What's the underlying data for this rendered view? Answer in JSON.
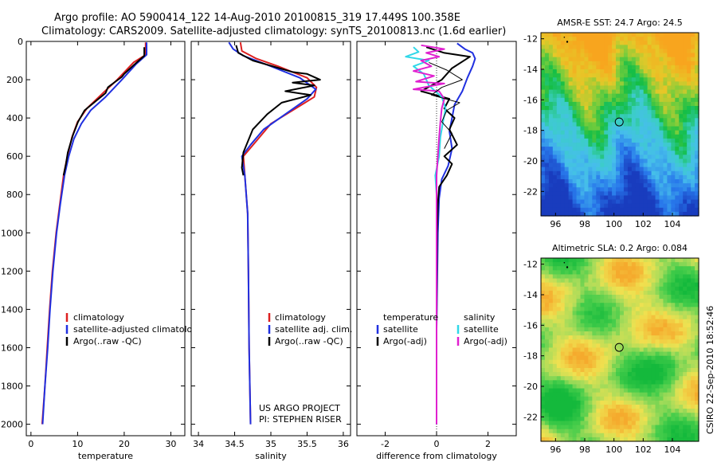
{
  "header": {
    "line1": "Argo profile: AO 5900414_122 14-Aug-2010 20100815_319 17.449S 100.358E",
    "line2": "Climatology: CARS2009. Satellite-adjusted climatology: synTS_20100813.nc (1.6d earlier)"
  },
  "side_label": "CSIRO 22-Sep-2010 18:52:46",
  "chart_data": [
    {
      "id": "temperature",
      "type": "line",
      "xlabel": "temperature",
      "xlim": [
        -1,
        33
      ],
      "ylim": [
        2060,
        0
      ],
      "xticks": [
        "0",
        "10",
        "20",
        "30"
      ],
      "xtick_values": [
        0,
        10,
        20,
        30
      ],
      "yticks": [
        "0",
        "200",
        "400",
        "600",
        "800",
        "1000",
        "1200",
        "1400",
        "1600",
        "1800",
        "2000"
      ],
      "ytick_values": [
        0,
        200,
        400,
        600,
        800,
        1000,
        1200,
        1400,
        1600,
        1800,
        2000
      ],
      "legend": [
        "climatology",
        "satellite-adjusted climatology",
        "Argo(..raw -QC)"
      ],
      "legend_colors": [
        "#dd2020",
        "#2030e0",
        "#000000"
      ],
      "series": [
        {
          "name": "climatology",
          "color": "#dd2020",
          "width": 2,
          "points": [
            [
              24.6,
              5
            ],
            [
              24.6,
              70
            ],
            [
              22,
              110
            ],
            [
              18.5,
              200
            ],
            [
              15,
              280
            ],
            [
              12,
              350
            ],
            [
              10,
              420
            ],
            [
              8.8,
              500
            ],
            [
              7.8,
              600
            ],
            [
              7,
              700
            ],
            [
              6.2,
              850
            ],
            [
              5.4,
              1000
            ],
            [
              4.6,
              1200
            ],
            [
              4,
              1400
            ],
            [
              3.5,
              1600
            ],
            [
              3.0,
              1800
            ],
            [
              2.4,
              2000
            ]
          ]
        },
        {
          "name": "satellite-adjusted climatology",
          "color": "#2030e0",
          "width": 2,
          "points": [
            [
              24.8,
              5
            ],
            [
              24.8,
              70
            ],
            [
              22.5,
              120
            ],
            [
              19.5,
              200
            ],
            [
              16,
              290
            ],
            [
              12.8,
              360
            ],
            [
              10.8,
              430
            ],
            [
              9.2,
              510
            ],
            [
              8.1,
              600
            ],
            [
              7.2,
              700
            ],
            [
              6.3,
              850
            ],
            [
              5.5,
              1000
            ],
            [
              4.7,
              1200
            ],
            [
              4.1,
              1400
            ],
            [
              3.6,
              1600
            ],
            [
              3.0,
              1800
            ],
            [
              2.5,
              2000
            ]
          ]
        },
        {
          "name": "Argo(..raw -QC)",
          "color": "#000000",
          "width": 2,
          "points": [
            [
              24.3,
              30
            ],
            [
              24.3,
              75
            ],
            [
              22,
              125
            ],
            [
              20,
              170
            ],
            [
              19.5,
              185
            ],
            [
              17,
              230
            ],
            [
              16.5,
              240
            ],
            [
              16,
              270
            ],
            [
              14.5,
              300
            ],
            [
              11.5,
              360
            ],
            [
              10.1,
              420
            ],
            [
              9,
              490
            ],
            [
              7.9,
              580
            ],
            [
              7.5,
              640
            ],
            [
              7.0,
              700
            ]
          ]
        }
      ]
    },
    {
      "id": "salinity",
      "type": "line",
      "xlabel": "salinity",
      "xlim": [
        33.9,
        36.1
      ],
      "ylim": [
        2060,
        0
      ],
      "xticks": [
        "34",
        "34.5",
        "35",
        "35.5",
        "36"
      ],
      "xtick_values": [
        34,
        34.5,
        35,
        35.5,
        36
      ],
      "legend": [
        "climatology",
        "satellite adj. clim.",
        "Argo(..raw -QC)"
      ],
      "legend_colors": [
        "#dd2020",
        "#2030e0",
        "#000000"
      ],
      "note": [
        "US ARGO PROJECT",
        "PI: STEPHEN RISER"
      ],
      "series": [
        {
          "name": "climatology",
          "color": "#dd2020",
          "width": 2,
          "points": [
            [
              34.58,
              5
            ],
            [
              34.6,
              50
            ],
            [
              34.8,
              90
            ],
            [
              35.1,
              130
            ],
            [
              35.5,
              190
            ],
            [
              35.63,
              240
            ],
            [
              35.6,
              290
            ],
            [
              35.3,
              360
            ],
            [
              35.0,
              430
            ],
            [
              34.8,
              520
            ],
            [
              34.62,
              600
            ],
            [
              34.64,
              700
            ],
            [
              34.68,
              900
            ],
            [
              34.69,
              1200
            ],
            [
              34.7,
              1600
            ],
            [
              34.72,
              2000
            ]
          ]
        },
        {
          "name": "satellite adj. clim.",
          "color": "#2030e0",
          "width": 2,
          "points": [
            [
              34.42,
              5
            ],
            [
              34.48,
              40
            ],
            [
              34.62,
              75
            ],
            [
              35.0,
              130
            ],
            [
              35.4,
              190
            ],
            [
              35.62,
              250
            ],
            [
              35.5,
              300
            ],
            [
              35.2,
              380
            ],
            [
              34.9,
              460
            ],
            [
              34.72,
              540
            ],
            [
              34.6,
              600
            ],
            [
              34.64,
              700
            ],
            [
              34.68,
              900
            ],
            [
              34.69,
              1200
            ],
            [
              34.7,
              1600
            ],
            [
              34.72,
              2000
            ]
          ]
        },
        {
          "name": "Argo(..raw -QC)",
          "color": "#000000",
          "width": 2,
          "points": [
            [
              34.52,
              20
            ],
            [
              34.55,
              60
            ],
            [
              34.75,
              100
            ],
            [
              35.3,
              160
            ],
            [
              35.5,
              170
            ],
            [
              35.68,
              200
            ],
            [
              35.3,
              215
            ],
            [
              35.6,
              230
            ],
            [
              35.2,
              260
            ],
            [
              35.55,
              280
            ],
            [
              35.15,
              320
            ],
            [
              34.95,
              380
            ],
            [
              34.75,
              460
            ],
            [
              34.62,
              580
            ],
            [
              34.6,
              660
            ],
            [
              34.62,
              700
            ]
          ]
        }
      ]
    },
    {
      "id": "difference",
      "type": "line",
      "xlabel": "difference from climatology",
      "xlim": [
        -3.1,
        3.1
      ],
      "ylim": [
        2060,
        0
      ],
      "xticks": [
        "-2",
        "0",
        "2"
      ],
      "xtick_values": [
        -2,
        0,
        2
      ],
      "legend_left": [
        "temperature",
        "satellite",
        "Argo(-adj)"
      ],
      "legend_left_colors": [
        null,
        "#2030e0",
        "#000000"
      ],
      "legend_right": [
        "salinity",
        "satellite",
        "Argo(-adj)"
      ],
      "legend_right_colors": [
        null,
        "#30d8e8",
        "#e020d0"
      ],
      "series": [
        {
          "name": "temperature satellite",
          "color": "#2030e0",
          "width": 2,
          "points": [
            [
              0.8,
              10
            ],
            [
              1.1,
              40
            ],
            [
              1.4,
              60
            ],
            [
              1.5,
              90
            ],
            [
              1.4,
              130
            ],
            [
              1.2,
              190
            ],
            [
              1.0,
              260
            ],
            [
              0.7,
              330
            ],
            [
              0.6,
              400
            ],
            [
              0.5,
              470
            ],
            [
              0.6,
              560
            ],
            [
              0.45,
              650
            ],
            [
              0.2,
              720
            ],
            [
              0.1,
              820
            ],
            [
              0.05,
              1000
            ],
            [
              0.0,
              1500
            ],
            [
              0.0,
              2000
            ]
          ]
        },
        {
          "name": "temperature Argo(-adj)",
          "color": "#000000",
          "width": 2,
          "points": [
            [
              -0.4,
              30
            ],
            [
              0.3,
              60
            ],
            [
              1.3,
              80
            ],
            [
              0.6,
              140
            ],
            [
              0.2,
              200
            ],
            [
              -0.6,
              260
            ],
            [
              0.5,
              300
            ],
            [
              0.3,
              350
            ],
            [
              0.7,
              400
            ],
            [
              0.5,
              460
            ],
            [
              0.8,
              540
            ],
            [
              0.3,
              600
            ],
            [
              0.6,
              640
            ],
            [
              0.4,
              700
            ],
            [
              0.1,
              760
            ],
            [
              0.05,
              850
            ],
            [
              0.02,
              1000
            ],
            [
              0.0,
              1500
            ],
            [
              0.0,
              2000
            ]
          ]
        },
        {
          "name": "salinity satellite",
          "color": "#30d8e8",
          "width": 2,
          "points": [
            [
              -0.9,
              30
            ],
            [
              -0.7,
              55
            ],
            [
              -1.2,
              80
            ],
            [
              -0.3,
              100
            ],
            [
              -0.9,
              130
            ],
            [
              -0.5,
              170
            ],
            [
              -0.3,
              230
            ],
            [
              0.2,
              290
            ],
            [
              0.35,
              350
            ],
            [
              0.25,
              420
            ],
            [
              0.15,
              500
            ],
            [
              0.1,
              600
            ],
            [
              -0.05,
              700
            ],
            [
              0.0,
              800
            ],
            [
              0.0,
              1200
            ],
            [
              0.0,
              2000
            ]
          ]
        },
        {
          "name": "salinity Argo(-adj)",
          "color": "#e020d0",
          "width": 2,
          "points": [
            [
              -0.6,
              20
            ],
            [
              0.3,
              40
            ],
            [
              -0.4,
              60
            ],
            [
              0.1,
              80
            ],
            [
              -0.6,
              100
            ],
            [
              -0.2,
              130
            ],
            [
              -0.9,
              155
            ],
            [
              -0.1,
              180
            ],
            [
              -0.8,
              210
            ],
            [
              0.3,
              220
            ],
            [
              -0.9,
              250
            ],
            [
              0.1,
              260
            ],
            [
              0.3,
              300
            ],
            [
              0.2,
              350
            ],
            [
              0.15,
              420
            ],
            [
              0.1,
              500
            ],
            [
              0.05,
              600
            ],
            [
              0.0,
              700
            ],
            [
              0.0,
              900
            ],
            [
              0.0,
              2000
            ]
          ]
        },
        {
          "name": "temperature Argo extra",
          "color": "#000000",
          "width": 1,
          "points": [
            [
              -0.3,
              110
            ],
            [
              0.4,
              150
            ],
            [
              1.0,
              200
            ],
            [
              0.2,
              240
            ],
            [
              -0.2,
              280
            ],
            [
              0.9,
              320
            ],
            [
              0.4,
              360
            ],
            [
              0.2,
              420
            ],
            [
              0.6,
              480
            ],
            [
              0.3,
              560
            ]
          ]
        }
      ]
    },
    {
      "id": "sst_map",
      "type": "heatmap",
      "title": "AMSR-E SST: 24.7 Argo: 24.5",
      "xlim": [
        95,
        105.8
      ],
      "ylim": [
        -23.6,
        -11.6
      ],
      "xticks": [
        "96",
        "98",
        "100",
        "102",
        "104"
      ],
      "xtick_values": [
        96,
        98,
        100,
        102,
        104
      ],
      "yticks": [
        "-12",
        "-14",
        "-16",
        "-18",
        "-20",
        "-22"
      ],
      "ytick_values": [
        -12,
        -14,
        -16,
        -18,
        -20,
        -22
      ],
      "marker": [
        100.358,
        -17.449
      ]
    },
    {
      "id": "sla_map",
      "type": "heatmap",
      "title": "Altimetric SLA: 0.2 Argo: 0.084",
      "xlim": [
        95,
        105.8
      ],
      "ylim": [
        -23.6,
        -11.6
      ],
      "xticks": [
        "96",
        "98",
        "100",
        "102",
        "104"
      ],
      "xtick_values": [
        96,
        98,
        100,
        102,
        104
      ],
      "yticks": [
        "-12",
        "-14",
        "-16",
        "-18",
        "-20",
        "-22"
      ],
      "ytick_values": [
        -12,
        -14,
        -16,
        -18,
        -20,
        -22
      ],
      "marker": [
        100.358,
        -17.449
      ]
    }
  ]
}
